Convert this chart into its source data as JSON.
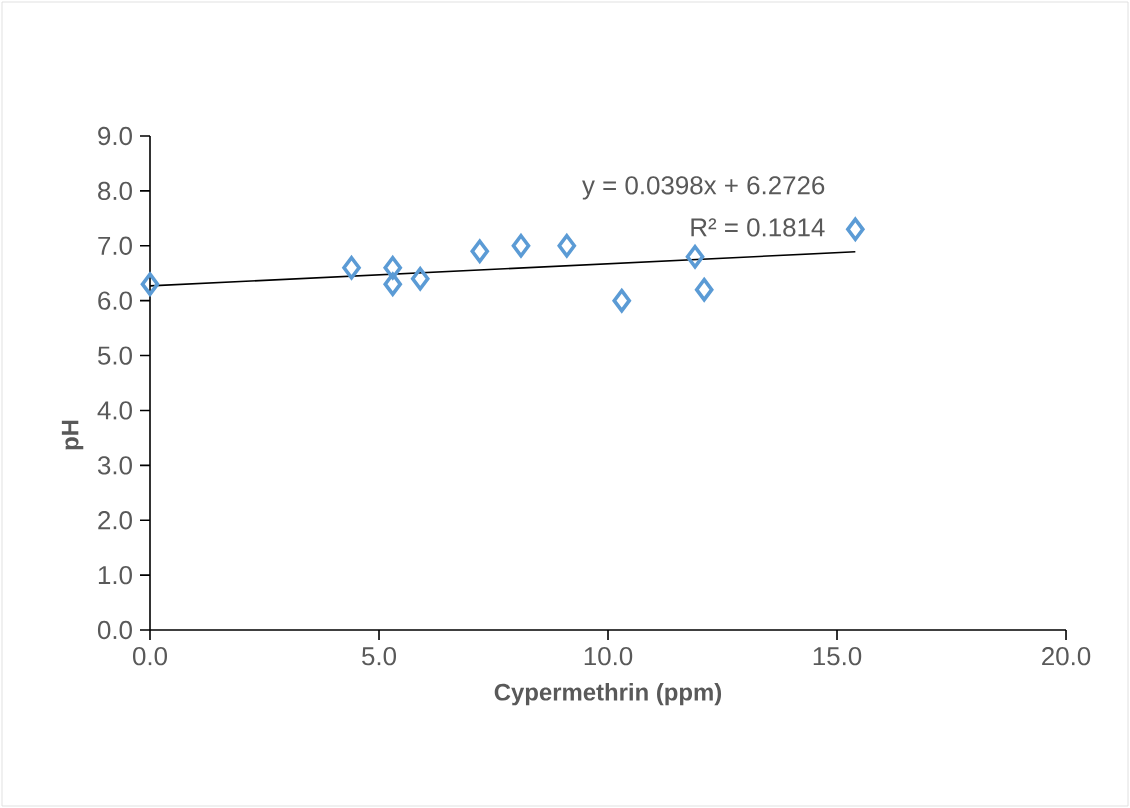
{
  "chart_data": {
    "type": "scatter",
    "xlabel": "Cypermethrin  (ppm)",
    "ylabel": "pH",
    "xlim": [
      0,
      20
    ],
    "xticks": [
      {
        "value": 0,
        "label": "0.0"
      },
      {
        "value": 5,
        "label": "5.0"
      },
      {
        "value": 10,
        "label": "10.0"
      },
      {
        "value": 15,
        "label": "15.0"
      },
      {
        "value": 20,
        "label": "20.0"
      }
    ],
    "ylim": [
      0,
      9
    ],
    "yticks": [
      {
        "value": 0,
        "label": "0.0"
      },
      {
        "value": 1,
        "label": "1.0"
      },
      {
        "value": 2,
        "label": "2.0"
      },
      {
        "value": 3,
        "label": "3.0"
      },
      {
        "value": 4,
        "label": "4.0"
      },
      {
        "value": 5,
        "label": "5.0"
      },
      {
        "value": 6,
        "label": "6.0"
      },
      {
        "value": 7,
        "label": "7.0"
      },
      {
        "value": 8,
        "label": "8.0"
      },
      {
        "value": 9,
        "label": "9.0"
      }
    ],
    "grid": false,
    "series": [
      {
        "color": "#5b9bd5",
        "marker": "diamond",
        "x": [
          0.0,
          4.4,
          5.3,
          5.3,
          5.9,
          7.2,
          8.1,
          9.1,
          10.3,
          11.9,
          12.1,
          15.4
        ],
        "values": [
          6.3,
          6.6,
          6.6,
          6.3,
          6.4,
          6.9,
          7.0,
          7.0,
          6.0,
          6.8,
          6.2,
          7.3
        ]
      },
      {
        "type": "line",
        "color": "#000000",
        "marker": "none",
        "x": [
          0.0,
          15.4
        ],
        "values": [
          6.27,
          6.89
        ]
      }
    ],
    "annotations": [
      "y = 0.0398x + 6.2726",
      "R² = 0.1814"
    ]
  }
}
